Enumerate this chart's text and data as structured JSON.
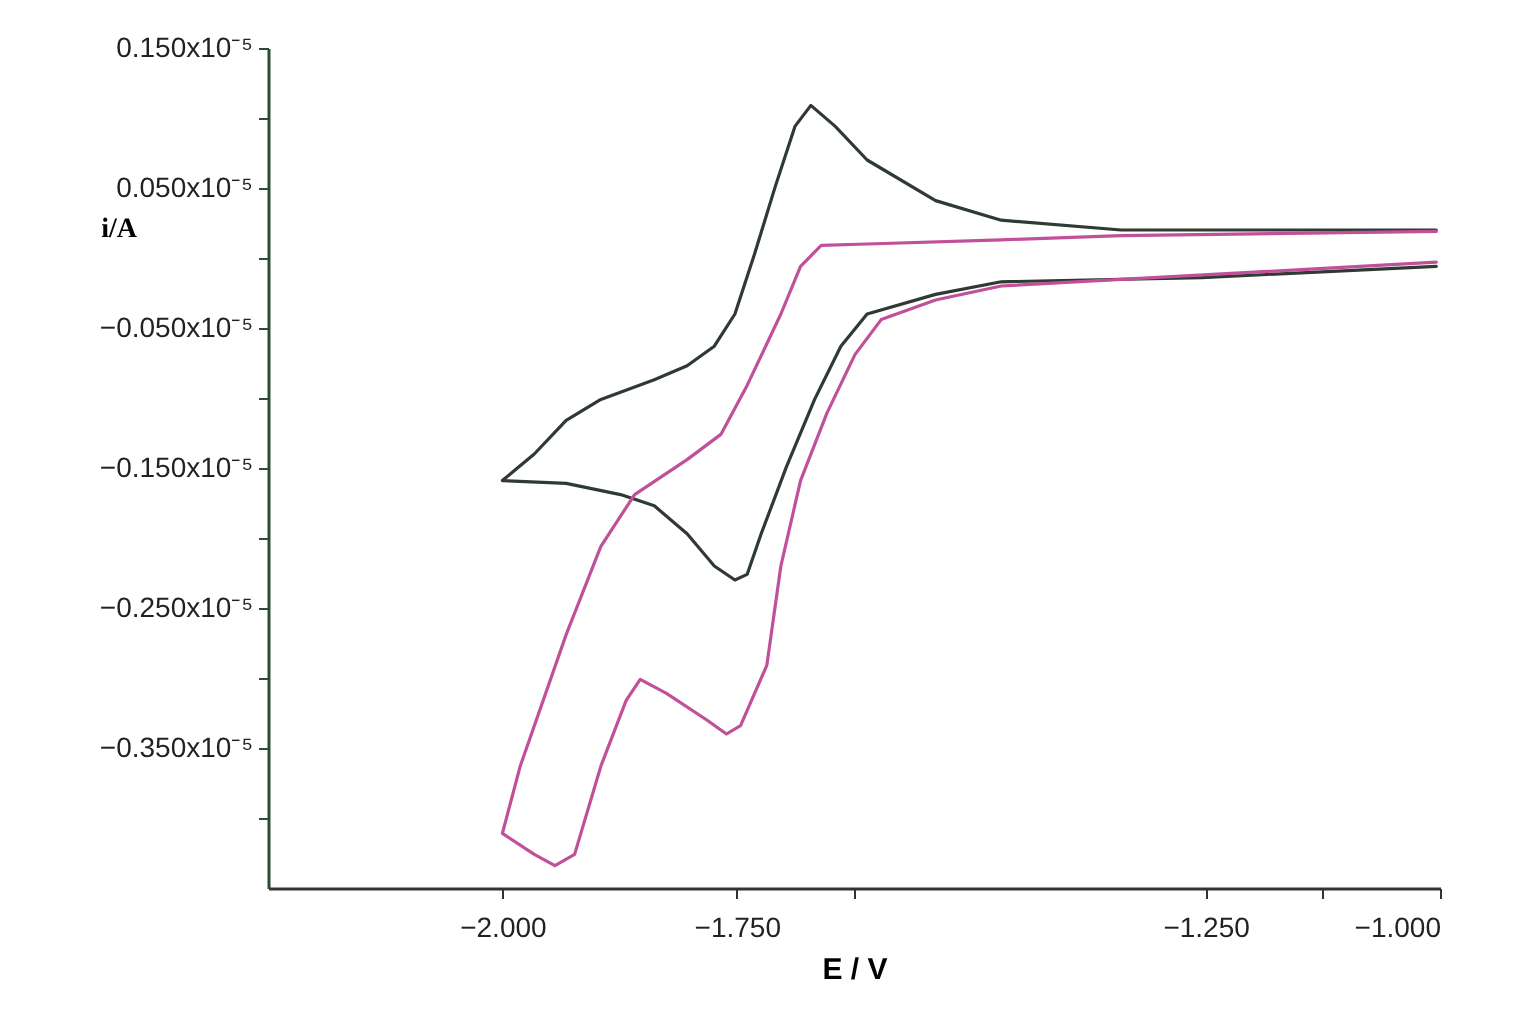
{
  "chart_data": {
    "type": "line",
    "xlabel": "E / V",
    "ylabel": "i/A",
    "xlim": [
      -2.25,
      -1.0
    ],
    "xticks": [
      {
        "value": -2.0,
        "label": "−2.000"
      },
      {
        "value": -1.75,
        "label": "−1.750"
      },
      {
        "value": -1.625,
        "label": null
      },
      {
        "value": -1.25,
        "label": "−1.250"
      },
      {
        "value": -1.125,
        "label": null
      },
      {
        "value": -1.0,
        "label": "−1.000"
      }
    ],
    "ylim": [
      -4.5e-06,
      1.5e-06
    ],
    "yticks": [
      {
        "value": 1.5e-06,
        "label": "0.150x10⁻⁵"
      },
      {
        "value": 1e-06,
        "label": null
      },
      {
        "value": 5e-07,
        "label": "0.050x10⁻⁵"
      },
      {
        "value": 0,
        "label": null
      },
      {
        "value": -5e-07,
        "label": "−0.050x10⁻⁵"
      },
      {
        "value": -1e-06,
        "label": null
      },
      {
        "value": -1.5e-06,
        "label": "−0.150x10⁻⁵"
      },
      {
        "value": -2e-06,
        "label": null
      },
      {
        "value": -2.5e-06,
        "label": "−0.250x10⁻⁵"
      },
      {
        "value": -3e-06,
        "label": null
      },
      {
        "value": -3.5e-06,
        "label": "−0.350x10⁻⁵"
      },
      {
        "value": -4e-06,
        "label": null
      }
    ],
    "grid": false,
    "legend": false,
    "series": [
      {
        "color": "#2f3a33",
        "x": [
          -1.004,
          -1.254,
          -1.468,
          -1.538,
          -1.611,
          -1.639,
          -1.667,
          -1.697,
          -1.724,
          -1.739,
          -1.752,
          -1.774,
          -1.803,
          -1.838,
          -1.874,
          -1.932,
          -2.0,
          -1.966,
          -1.932,
          -1.895,
          -1.838,
          -1.803,
          -1.774,
          -1.752,
          -1.731,
          -1.709,
          -1.688,
          -1.671,
          -1.645,
          -1.611,
          -1.538,
          -1.468,
          -1.34,
          -1.004
        ],
        "values": [
          -6e-08,
          -1.4e-07,
          -1.7e-07,
          -2.6e-07,
          -4e-07,
          -6.3e-07,
          -1.01e-06,
          -1.49e-06,
          -1.97e-06,
          -2.26e-06,
          -2.3e-06,
          -2.2e-06,
          -1.97e-06,
          -1.77e-06,
          -1.69e-06,
          -1.61e-06,
          -1.59e-06,
          -1.4e-06,
          -1.16e-06,
          -1.01e-06,
          -8.7e-07,
          -7.7e-07,
          -6.3e-07,
          -4e-07,
          3e-08,
          5.1e-07,
          9.4e-07,
          1.09e-06,
          9.4e-07,
          7e-07,
          4.1e-07,
          2.7e-07,
          2e-07,
          2e-07
        ]
      },
      {
        "color": "#c0509a",
        "x": [
          -1.004,
          -1.468,
          -1.538,
          -1.596,
          -1.624,
          -1.654,
          -1.682,
          -1.703,
          -1.718,
          -1.746,
          -1.761,
          -1.782,
          -1.825,
          -1.853,
          -1.868,
          -1.895,
          -1.923,
          -1.944,
          -1.966,
          -2.0,
          -1.981,
          -1.932,
          -1.895,
          -1.859,
          -1.803,
          -1.767,
          -1.739,
          -1.703,
          -1.682,
          -1.66,
          -1.611,
          -1.468,
          -1.34,
          -1.004
        ],
        "values": [
          -3e-08,
          -2e-07,
          -3e-07,
          -4.4e-07,
          -6.9e-07,
          -1.11e-06,
          -1.59e-06,
          -2.2e-06,
          -2.91e-06,
          -3.34e-06,
          -3.4e-06,
          -3.3e-06,
          -3.11e-06,
          -3.01e-06,
          -3.16e-06,
          -3.63e-06,
          -4.26e-06,
          -4.34e-06,
          -4.26e-06,
          -4.11e-06,
          -3.63e-06,
          -2.69e-06,
          -2.06e-06,
          -1.69e-06,
          -1.44e-06,
          -1.26e-06,
          -9.1e-07,
          -4e-07,
          -6e-08,
          9e-08,
          1e-07,
          1.3e-07,
          1.6e-07,
          1.9e-07
        ]
      }
    ]
  }
}
